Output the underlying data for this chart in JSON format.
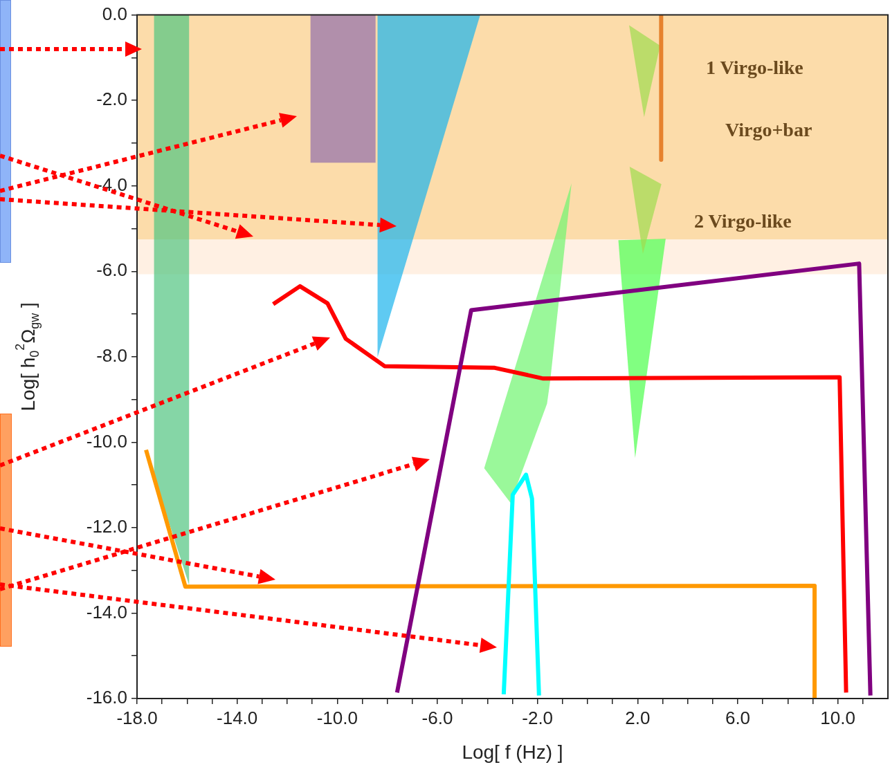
{
  "chart_data": {
    "type": "line",
    "xlabel": "Log[ f (Hz) ]",
    "ylabel": "Log[ h$_{0}$$^{2}$Ω$_{gw}$ ]",
    "xlim": [
      -18,
      12
    ],
    "ylim": [
      -16,
      0
    ],
    "xticks": [
      {
        "value": -18,
        "label": "-18.0"
      },
      {
        "value": -17,
        "label": null
      },
      {
        "value": -16,
        "label": null
      },
      {
        "value": -15,
        "label": null
      },
      {
        "value": -14,
        "label": "-14.0"
      },
      {
        "value": -13,
        "label": null
      },
      {
        "value": -12,
        "label": null
      },
      {
        "value": -11,
        "label": null
      },
      {
        "value": -10,
        "label": "-10.0"
      },
      {
        "value": -9,
        "label": null
      },
      {
        "value": -8,
        "label": null
      },
      {
        "value": -7,
        "label": null
      },
      {
        "value": -6,
        "label": "-6.0"
      },
      {
        "value": -5,
        "label": null
      },
      {
        "value": -4,
        "label": null
      },
      {
        "value": -3,
        "label": null
      },
      {
        "value": -2,
        "label": "-2.0"
      },
      {
        "value": -1,
        "label": null
      },
      {
        "value": 0,
        "label": null
      },
      {
        "value": 1,
        "label": null
      },
      {
        "value": 2,
        "label": "2.0"
      },
      {
        "value": 3,
        "label": null
      },
      {
        "value": 4,
        "label": null
      },
      {
        "value": 5,
        "label": null
      },
      {
        "value": 6,
        "label": "6.0"
      },
      {
        "value": 7,
        "label": null
      },
      {
        "value": 8,
        "label": null
      },
      {
        "value": 9,
        "label": null
      },
      {
        "value": 10,
        "label": "10.0"
      },
      {
        "value": 11,
        "label": null
      }
    ],
    "yticks": [
      {
        "value": -16,
        "label": "-16.0"
      },
      {
        "value": -15,
        "label": null
      },
      {
        "value": -14,
        "label": "-14.0"
      },
      {
        "value": -13,
        "label": null
      },
      {
        "value": -12,
        "label": "-12.0"
      },
      {
        "value": -11,
        "label": null
      },
      {
        "value": -10,
        "label": "-10.0"
      },
      {
        "value": -9,
        "label": null
      },
      {
        "value": -8,
        "label": "-8.0"
      },
      {
        "value": -7,
        "label": null
      },
      {
        "value": -6,
        "label": "-6.0"
      },
      {
        "value": -5,
        "label": null
      },
      {
        "value": -4,
        "label": "-4.0"
      },
      {
        "value": -3,
        "label": null
      },
      {
        "value": -2,
        "label": "-2.0"
      },
      {
        "value": -1,
        "label": null
      },
      {
        "value": 0,
        "label": "0.0"
      }
    ],
    "bands": [
      {
        "axis": "y",
        "from": -5.26,
        "to": 0,
        "color": "#fcdcaa"
      },
      {
        "axis": "y",
        "from": -6.07,
        "to": -5.26,
        "color": "#fff0e3"
      }
    ],
    "series": [
      {
        "type": "area",
        "color": "#51c480",
        "x": [
          -17.32,
          -15.92,
          -15.92,
          -17.32
        ],
        "values": [
          0,
          0,
          -13.34,
          -10.8
        ]
      },
      {
        "type": "area",
        "color": "#916eab",
        "x": [
          -11.07,
          -8.47,
          -8.47,
          -11.07
        ],
        "values": [
          0,
          0,
          -3.46,
          -3.46
        ]
      },
      {
        "type": "area",
        "color": "#1bb4ed",
        "x": [
          -8.39,
          -4.29,
          -8.39
        ],
        "values": [
          0,
          0,
          -8.01
        ]
      },
      {
        "type": "area",
        "color": "#6ff56f",
        "x": [
          -4.13,
          -0.64,
          -1.49,
          -1.62,
          -3.08
        ],
        "values": [
          -10.61,
          -3.94,
          -8.55,
          -9.1,
          -11.42
        ]
      },
      {
        "type": "area",
        "color": "#4cff4c",
        "x": [
          1.23,
          3.12,
          1.9
        ],
        "values": [
          -5.27,
          -5.24,
          -10.37
        ]
      },
      {
        "type": "area",
        "color": "#a0dc4f",
        "x": [
          1.66,
          2.9,
          2.26
        ],
        "values": [
          -0.24,
          -0.72,
          -2.39
        ]
      },
      {
        "type": "area",
        "color": "#a0dc4f",
        "x": [
          1.68,
          2.95,
          2.21
        ],
        "values": [
          -3.55,
          -3.96,
          -5.59
        ]
      },
      {
        "color": "#e6822e",
        "x": [
          2.94,
          2.94
        ],
        "values": [
          0,
          -3.39
        ]
      },
      {
        "color": "#ff9900",
        "x": [
          -17.64,
          -16.07,
          9.07,
          9.07
        ],
        "values": [
          -10.18,
          -13.38,
          -13.36,
          -16
        ]
      },
      {
        "color": "#ff0000",
        "x": [
          -12.56,
          -11.49,
          -10.39,
          -9.66,
          -8.11,
          -3.71,
          -1.77,
          10.07,
          10.33
        ],
        "values": [
          -6.77,
          -6.35,
          -6.75,
          -7.58,
          -8.22,
          -8.26,
          -8.51,
          -8.48,
          -15.86
        ]
      },
      {
        "color": "#800080",
        "x": [
          -7.61,
          -4.65,
          10.85,
          11.3
        ],
        "values": [
          -15.86,
          -6.91,
          -5.82,
          -15.93
        ]
      },
      {
        "color": "#00ffff",
        "x": [
          -3.35,
          -2.99,
          -2.46,
          -2.22,
          -1.94
        ],
        "values": [
          -15.9,
          -11.23,
          -10.76,
          -11.32,
          -15.93
        ]
      }
    ],
    "annotations": [
      "1 Virgo-like",
      "Virgo+bar",
      "2 Virgo-like"
    ]
  }
}
